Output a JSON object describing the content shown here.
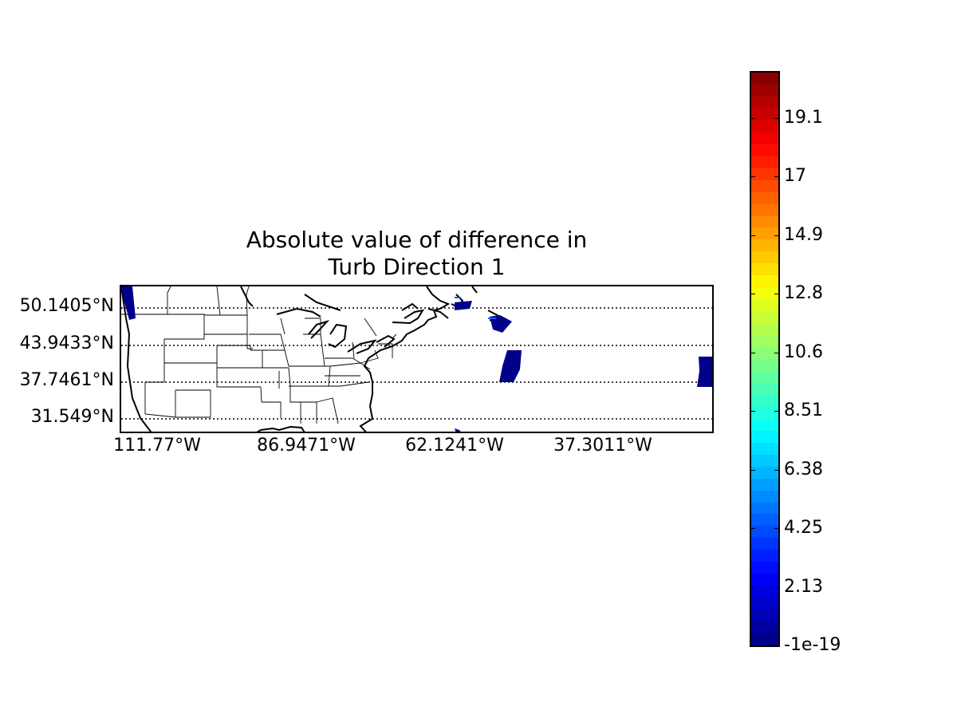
{
  "title": [
    "Absolute value of difference in",
    "Turb Direction 1"
  ],
  "map": {
    "latitude_labels": [
      "50.1405°N",
      "43.9433°N",
      "37.7461°N",
      "31.549°N"
    ],
    "longitude_labels": [
      "111.77°W",
      "86.9471°W",
      "62.1241°W",
      "37.3011°W"
    ],
    "gridlines": "dotted"
  },
  "colorbar": {
    "colormap": "jet",
    "tick_labels": [
      "-1e-19",
      "2.13",
      "4.25",
      "6.38",
      "8.51",
      "10.6",
      "12.8",
      "14.9",
      "17",
      "19.1"
    ],
    "low_color": "#00007f",
    "high_color": "#7f0000"
  },
  "data_swaths_color": "#00008b"
}
